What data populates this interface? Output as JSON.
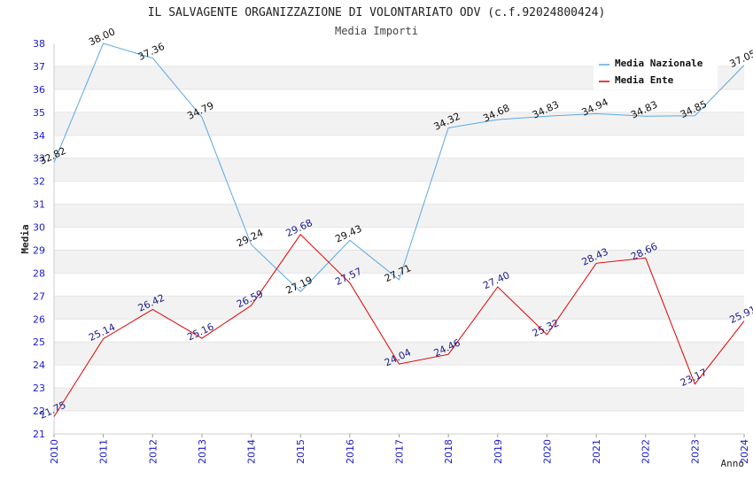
{
  "chart_data": {
    "type": "line",
    "title": "IL SALVAGENTE ORGANIZZAZIONE DI VOLONTARIATO ODV (c.f.92024800424)",
    "subtitle": "Media Importi",
    "xlabel": "Anno",
    "ylabel": "Media",
    "ylim": [
      21,
      38
    ],
    "yticks": [
      21,
      22,
      23,
      24,
      25,
      26,
      27,
      28,
      29,
      30,
      31,
      32,
      33,
      34,
      35,
      36,
      37,
      38
    ],
    "categories": [
      "2010",
      "2011",
      "2012",
      "2013",
      "2014",
      "2015",
      "2016",
      "2017",
      "2018",
      "2019",
      "2020",
      "2021",
      "2022",
      "2023",
      "2024"
    ],
    "grid": "horizontal alternating bands",
    "legend_position": "top-right",
    "series": [
      {
        "name": "Media Nazionale",
        "color": "#5aa9e6",
        "values": [
          32.82,
          38.0,
          37.36,
          34.79,
          29.24,
          27.19,
          29.43,
          27.71,
          34.32,
          34.68,
          34.83,
          34.94,
          34.83,
          34.85,
          37.05
        ],
        "labels": [
          "32.82",
          "38.00",
          "37.36",
          "34.79",
          "29.24",
          "27.19",
          "29.43",
          "27.71",
          "34.32",
          "34.68",
          "34.83",
          "34.94",
          "34.83",
          "34.85",
          "37.05"
        ]
      },
      {
        "name": "Media Ente",
        "color": "#dd0000",
        "values": [
          21.75,
          25.14,
          26.42,
          25.16,
          26.59,
          29.68,
          27.57,
          24.04,
          24.46,
          27.4,
          25.32,
          28.43,
          28.66,
          23.17,
          25.91
        ],
        "labels": [
          "21.75",
          "25.14",
          "26.42",
          "25.16",
          "26.59",
          "29.68",
          "27.57",
          "24.04",
          "24.46",
          "27.40",
          "25.32",
          "28.43",
          "28.66",
          "23.17",
          "25.91"
        ]
      }
    ]
  }
}
